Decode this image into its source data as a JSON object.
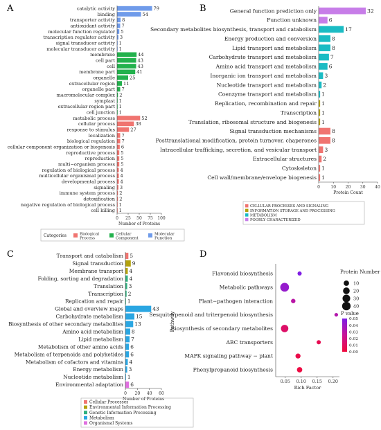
{
  "panels": {
    "a": "A",
    "b": "B",
    "c": "C",
    "d": "D"
  },
  "colors": {
    "blue": "#6f9bea",
    "green": "#22b14c",
    "red": "#f07470",
    "purple": "#c77de8",
    "cyan": "#1bbcc4",
    "olive": "#b3a10c",
    "teal": "#2fb07f",
    "sky": "#2aa6e2",
    "magenta": "#e06fe0"
  },
  "chart_data": [
    {
      "type": "bar",
      "panel": "A",
      "orientation": "horizontal",
      "xlabel": "Number of Proteins",
      "xticks": [
        "0",
        "25",
        "50",
        "75",
        "100"
      ],
      "xlim": [
        0,
        100
      ],
      "legend_title": "Categories",
      "legend_position": "bottom",
      "series": [
        {
          "name": "Biological Process",
          "color": "#f07470"
        },
        {
          "name": "Cellular Component",
          "color": "#22b14c"
        },
        {
          "name": "Molecular Function",
          "color": "#6f9bea"
        }
      ],
      "items": [
        {
          "label": "catalytic activity",
          "value": 79,
          "group": "Molecular Function"
        },
        {
          "label": "binding",
          "value": 54,
          "group": "Molecular Function"
        },
        {
          "label": "transporter activity",
          "value": 8,
          "group": "Molecular Function"
        },
        {
          "label": "antioxidant activity",
          "value": 7,
          "group": "Molecular Function"
        },
        {
          "label": "molecular function regulator",
          "value": 5,
          "group": "Molecular Function"
        },
        {
          "label": "transcription regulator activity",
          "value": 3,
          "group": "Molecular Function"
        },
        {
          "label": "signal transducer activity",
          "value": 1,
          "group": "Molecular Function"
        },
        {
          "label": "molecular transducer activity",
          "value": 1,
          "group": "Molecular Function"
        },
        {
          "label": "membrane",
          "value": 44,
          "group": "Cellular Component"
        },
        {
          "label": "cell part",
          "value": 43,
          "group": "Cellular Component"
        },
        {
          "label": "cell",
          "value": 43,
          "group": "Cellular Component"
        },
        {
          "label": "membrane part",
          "value": 41,
          "group": "Cellular Component"
        },
        {
          "label": "organelle",
          "value": 25,
          "group": "Cellular Component"
        },
        {
          "label": "extracellular region",
          "value": 11,
          "group": "Cellular Component"
        },
        {
          "label": "organelle part",
          "value": 7,
          "group": "Cellular Component"
        },
        {
          "label": "macromolecular complex",
          "value": 2,
          "group": "Cellular Component"
        },
        {
          "label": "symplast",
          "value": 1,
          "group": "Cellular Component"
        },
        {
          "label": "extracellular region part",
          "value": 1,
          "group": "Cellular Component"
        },
        {
          "label": "cell junction",
          "value": 1,
          "group": "Cellular Component"
        },
        {
          "label": "metabolic process",
          "value": 52,
          "group": "Biological Process"
        },
        {
          "label": "cellular process",
          "value": 38,
          "group": "Biological Process"
        },
        {
          "label": "response to stimulus",
          "value": 27,
          "group": "Biological Process"
        },
        {
          "label": "localization",
          "value": 7,
          "group": "Biological Process"
        },
        {
          "label": "biological regulation",
          "value": 7,
          "group": "Biological Process"
        },
        {
          "label": "cellular component organization or biogenesis",
          "value": 6,
          "group": "Biological Process"
        },
        {
          "label": "reproductive process",
          "value": 5,
          "group": "Biological Process"
        },
        {
          "label": "reproduction",
          "value": 5,
          "group": "Biological Process"
        },
        {
          "label": "multi−organism process",
          "value": 5,
          "group": "Biological Process"
        },
        {
          "label": "regulation of biological process",
          "value": 4,
          "group": "Biological Process"
        },
        {
          "label": "multicellular organismal process",
          "value": 4,
          "group": "Biological Process"
        },
        {
          "label": "developmental process",
          "value": 4,
          "group": "Biological Process"
        },
        {
          "label": "signaling",
          "value": 3,
          "group": "Biological Process"
        },
        {
          "label": "immune system process",
          "value": 2,
          "group": "Biological Process"
        },
        {
          "label": "detoxification",
          "value": 2,
          "group": "Biological Process"
        },
        {
          "label": "negative regulation of biological process",
          "value": 1,
          "group": "Biological Process"
        },
        {
          "label": "cell killing",
          "value": 1,
          "group": "Biological Process"
        }
      ]
    },
    {
      "type": "bar",
      "panel": "B",
      "orientation": "horizontal",
      "xlabel": "Protein Count",
      "xticks": [
        "0",
        "10",
        "20",
        "30",
        "40"
      ],
      "xlim": [
        0,
        40
      ],
      "legend_position": "bottom",
      "series": [
        {
          "name": "CELLULAR PROCESSES AND SIGNALING",
          "color": "#f07470"
        },
        {
          "name": "INFORMATION STORAGE AND PROCESSING",
          "color": "#b3a10c"
        },
        {
          "name": "METABOLISM",
          "color": "#1bbcc4"
        },
        {
          "name": "POORLY CHARACTERIZED",
          "color": "#c77de8"
        }
      ],
      "items": [
        {
          "label": "General function prediction only",
          "value": 32,
          "group": "POORLY CHARACTERIZED"
        },
        {
          "label": "Function unknown",
          "value": 6,
          "group": "POORLY CHARACTERIZED"
        },
        {
          "label": "Secondary metabolites biosynthesis, transport and catabolism",
          "value": 17,
          "group": "METABOLISM"
        },
        {
          "label": "Energy production and conversion",
          "value": 8,
          "group": "METABOLISM"
        },
        {
          "label": "Lipid transport and metabolism",
          "value": 8,
          "group": "METABOLISM"
        },
        {
          "label": "Carbohydrate transport and metabolism",
          "value": 7,
          "group": "METABOLISM"
        },
        {
          "label": "Amino acid transport and metabolism",
          "value": 6,
          "group": "METABOLISM"
        },
        {
          "label": "Inorganic ion transport and metabolism",
          "value": 3,
          "group": "METABOLISM"
        },
        {
          "label": "Nucleotide transport and metabolism",
          "value": 2,
          "group": "METABOLISM"
        },
        {
          "label": "Coenzyme transport and metabolism",
          "value": 1,
          "group": "METABOLISM"
        },
        {
          "label": "Replication, recombination and repair",
          "value": 1,
          "group": "INFORMATION STORAGE AND PROCESSING"
        },
        {
          "label": "Transcription",
          "value": 1,
          "group": "INFORMATION STORAGE AND PROCESSING"
        },
        {
          "label": "Translation, ribosomal structure and biogenesis",
          "value": 1,
          "group": "INFORMATION STORAGE AND PROCESSING"
        },
        {
          "label": "Signal transduction mechanisms",
          "value": 8,
          "group": "CELLULAR PROCESSES AND SIGNALING"
        },
        {
          "label": "Posttranslational modification, protein turnover, chaperones",
          "value": 8,
          "group": "CELLULAR PROCESSES AND SIGNALING"
        },
        {
          "label": "Intracellular trafficking, secretion, and vesicular transport",
          "value": 3,
          "group": "CELLULAR PROCESSES AND SIGNALING"
        },
        {
          "label": "Extracellular structures",
          "value": 2,
          "group": "CELLULAR PROCESSES AND SIGNALING"
        },
        {
          "label": "Cytoskeleton",
          "value": 1,
          "group": "CELLULAR PROCESSES AND SIGNALING"
        },
        {
          "label": "Cell wall/membrane/envelope biogenesis",
          "value": 1,
          "group": "CELLULAR PROCESSES AND SIGNALING"
        }
      ]
    },
    {
      "type": "bar",
      "panel": "C",
      "orientation": "horizontal",
      "xlabel": "Number of Proteins",
      "xticks": [
        "0",
        "20",
        "40",
        "60"
      ],
      "xlim": [
        0,
        60
      ],
      "legend_position": "bottom",
      "series": [
        {
          "name": "Cellular Processes",
          "color": "#f07470"
        },
        {
          "name": "Environmental Information Processing",
          "color": "#b3a10c"
        },
        {
          "name": "Genetic Information Processing",
          "color": "#2fb07f"
        },
        {
          "name": "Metabolism",
          "color": "#2aa6e2"
        },
        {
          "name": "Organismal Systems",
          "color": "#e06fe0"
        }
      ],
      "items": [
        {
          "label": "Transport and catabolism",
          "value": 5,
          "group": "Cellular Processes"
        },
        {
          "label": "Signal transduction",
          "value": 9,
          "group": "Environmental Information Processing"
        },
        {
          "label": "Membrane transport",
          "value": 4,
          "group": "Environmental Information Processing"
        },
        {
          "label": "Folding, sorting and degradation",
          "value": 4,
          "group": "Genetic Information Processing"
        },
        {
          "label": "Translation",
          "value": 3,
          "group": "Genetic Information Processing"
        },
        {
          "label": "Transcription",
          "value": 2,
          "group": "Genetic Information Processing"
        },
        {
          "label": "Replication and repair",
          "value": 1,
          "group": "Genetic Information Processing"
        },
        {
          "label": "Global and overview maps",
          "value": 43,
          "group": "Metabolism"
        },
        {
          "label": "Carbohydrate metabolism",
          "value": 15,
          "group": "Metabolism"
        },
        {
          "label": "Biosynthesis of other secondary metabolites",
          "value": 13,
          "group": "Metabolism"
        },
        {
          "label": "Amino acid metabolism",
          "value": 8,
          "group": "Metabolism"
        },
        {
          "label": "Lipid metabolism",
          "value": 7,
          "group": "Metabolism"
        },
        {
          "label": "Metabolism of other amino acids",
          "value": 6,
          "group": "Metabolism"
        },
        {
          "label": "Metabolism of terpenoids and polyketides",
          "value": 6,
          "group": "Metabolism"
        },
        {
          "label": "Metabolism of cofactors and vitamins",
          "value": 4,
          "group": "Metabolism"
        },
        {
          "label": "Energy metabolism",
          "value": 3,
          "group": "Metabolism"
        },
        {
          "label": "Nucleotide metabolism",
          "value": 1,
          "group": "Metabolism"
        },
        {
          "label": "Environmental adaptation",
          "value": 6,
          "group": "Organismal Systems"
        }
      ]
    },
    {
      "type": "scatter",
      "panel": "D",
      "xlabel": "Rich Factor",
      "ylabel": "Pathway",
      "xticks": [
        "0.05",
        "0.10",
        "0.15",
        "0.20"
      ],
      "xlim": [
        0.02,
        0.22
      ],
      "size_legend_title": "Protein Number",
      "size_ticks": [
        10,
        20,
        30,
        40
      ],
      "color_legend_title": "P value",
      "color_ticks": [
        "0.05",
        "0.04",
        "0.03",
        "0.02",
        "0.01",
        "0.00"
      ],
      "clim": [
        0,
        0.05
      ],
      "points": [
        {
          "pathway": "Flavonoid biosynthesis",
          "rich_factor": 0.095,
          "count": 4,
          "p": 0.049
        },
        {
          "pathway": "Metabolic pathways",
          "rich_factor": 0.048,
          "count": 43,
          "p": 0.042
        },
        {
          "pathway": "Plant−pathogen interaction",
          "rich_factor": 0.075,
          "count": 5,
          "p": 0.03
        },
        {
          "pathway": "Sesquiterpenoid and triterpenoid biosynthesis",
          "rich_factor": 0.21,
          "count": 2,
          "p": 0.032
        },
        {
          "pathway": "Biosynthesis of secondary metabolites",
          "rich_factor": 0.048,
          "count": 27,
          "p": 0.012
        },
        {
          "pathway": "ABC transporters",
          "rich_factor": 0.155,
          "count": 4,
          "p": 0.006
        },
        {
          "pathway": "MAPK signaling pathway − plant",
          "rich_factor": 0.09,
          "count": 8,
          "p": 0.004
        },
        {
          "pathway": "Phenylpropanoid biosynthesis",
          "rich_factor": 0.095,
          "count": 10,
          "p": 0.002
        }
      ]
    }
  ]
}
